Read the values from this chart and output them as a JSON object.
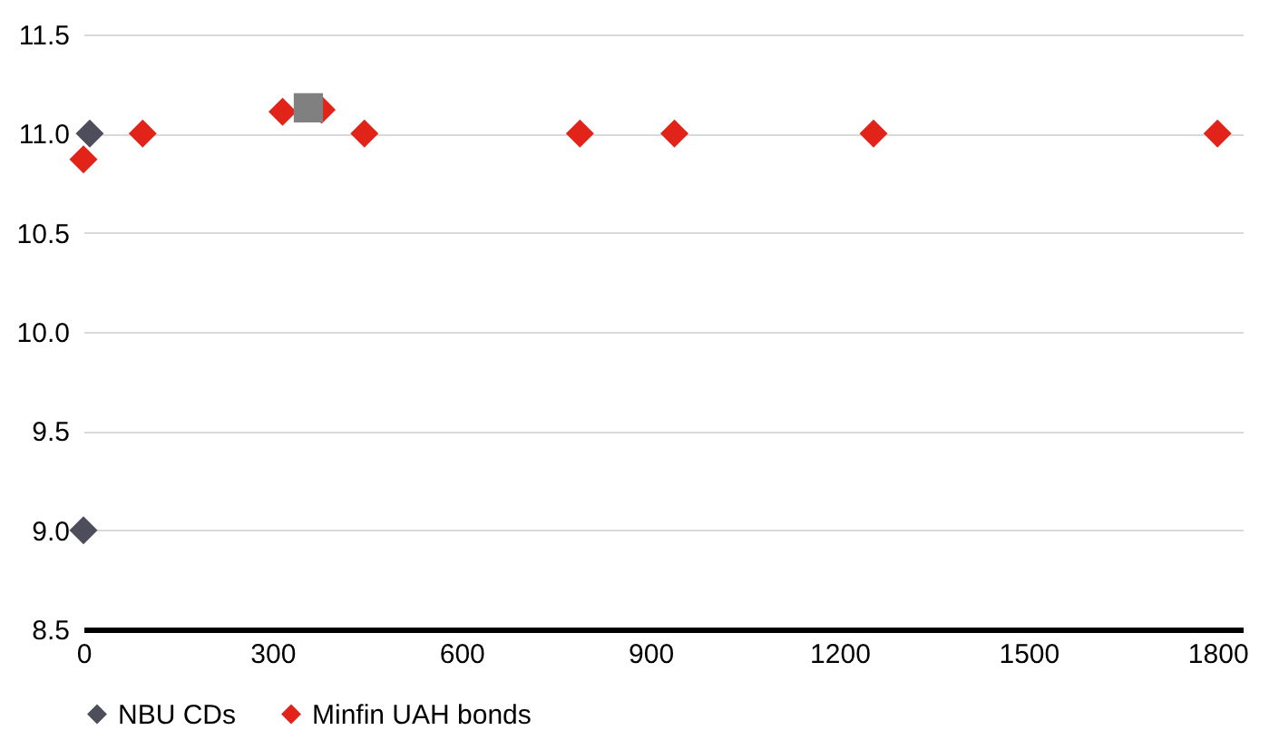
{
  "chart_data": {
    "type": "scatter",
    "xlim": [
      0,
      1840
    ],
    "xticks": [
      0,
      300,
      600,
      900,
      1200,
      1500,
      1800
    ],
    "ylim": [
      8.5,
      11.5
    ],
    "yticks": [
      {
        "value": 8.5,
        "label": "8.5"
      },
      {
        "value": 9,
        "label": "9.0"
      },
      {
        "value": 9.5,
        "label": "9.5"
      },
      {
        "value": 10,
        "label": "10.0"
      },
      {
        "value": 10.5,
        "label": "10.5"
      },
      {
        "value": 11,
        "label": "11.0"
      },
      {
        "value": 11.5,
        "label": "11.5"
      }
    ],
    "grid": "y",
    "legend": "bottom",
    "series": [
      {
        "name": "NBU CDs",
        "color": "#4d4d5c",
        "marker": "diamond",
        "x": [
          0,
          10
        ],
        "values": [
          9.0,
          11.0
        ]
      },
      {
        "name": "Minfin UAH bonds",
        "color": "#e2231a",
        "marker": "diamond",
        "x": [
          0,
          94,
          316,
          378,
          446,
          788,
          938,
          1254,
          1800
        ],
        "values": [
          10.87,
          11.0,
          11.11,
          11.12,
          11.0,
          11.0,
          11.0,
          11.0,
          11.0
        ]
      },
      {
        "color": "#808080",
        "marker": "square",
        "x": [
          357
        ],
        "values": [
          11.13
        ]
      }
    ]
  }
}
